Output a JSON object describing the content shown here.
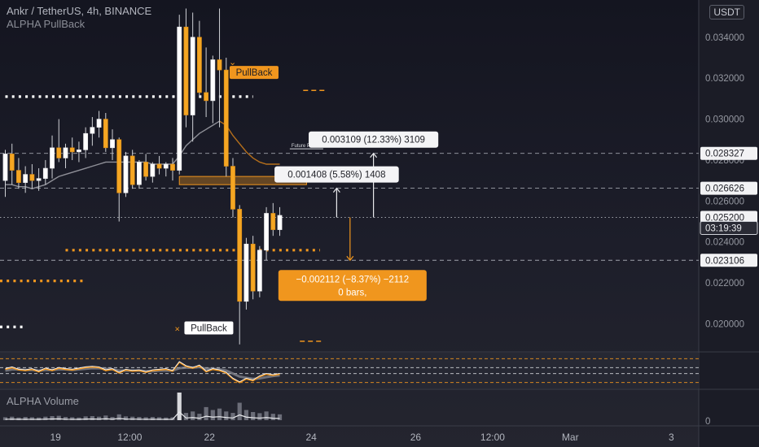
{
  "header": {
    "symbol": "Ankr / TetherUS, 4h, BINANCE",
    "indicator": "ALPHA PullBack",
    "currency": "USDT"
  },
  "volume_panel": {
    "title": "ALPHA Volume",
    "axis_label": "0"
  },
  "colors": {
    "up": "#ffffff",
    "down": "#f5a623",
    "accent": "#f0961e",
    "text": "#b2b5be",
    "dotted_line": "#ffffff",
    "ma_gray": "#8f9098"
  },
  "chart_data": {
    "type": "candlestick",
    "ylim": [
      0.01875,
      0.0355
    ],
    "price_ticks": [
      "0.034000",
      "0.032000",
      "0.030000",
      "0.028000",
      "0.026000",
      "0.024000",
      "0.022000",
      "0.020000"
    ],
    "price_labels": [
      {
        "value": 0.028327,
        "text": "0.028327",
        "style": "light"
      },
      {
        "value": 0.026626,
        "text": "0.026626",
        "style": "light"
      },
      {
        "value": 0.0252,
        "text": "0.025200",
        "style": "light"
      },
      {
        "value": 0.024685,
        "text": "03:19:39",
        "style": "dark"
      },
      {
        "value": 0.023106,
        "text": "0.023106",
        "style": "light"
      }
    ],
    "x_ticks": [
      "19",
      "12:00",
      "22",
      "24",
      "26",
      "12:00",
      "Mar",
      "3"
    ],
    "candles": [
      {
        "o": 0.027,
        "h": 0.0285,
        "l": 0.0262,
        "c": 0.0283
      },
      {
        "o": 0.0283,
        "h": 0.0288,
        "l": 0.0268,
        "c": 0.0275
      },
      {
        "o": 0.0275,
        "h": 0.0281,
        "l": 0.0266,
        "c": 0.0269
      },
      {
        "o": 0.0269,
        "h": 0.0277,
        "l": 0.0264,
        "c": 0.0273
      },
      {
        "o": 0.0273,
        "h": 0.0278,
        "l": 0.0266,
        "c": 0.027
      },
      {
        "o": 0.027,
        "h": 0.0276,
        "l": 0.0265,
        "c": 0.0271
      },
      {
        "o": 0.0271,
        "h": 0.028,
        "l": 0.0268,
        "c": 0.0276
      },
      {
        "o": 0.0276,
        "h": 0.0292,
        "l": 0.0271,
        "c": 0.0286
      },
      {
        "o": 0.0286,
        "h": 0.03,
        "l": 0.0279,
        "c": 0.0281
      },
      {
        "o": 0.0281,
        "h": 0.0288,
        "l": 0.0276,
        "c": 0.0286
      },
      {
        "o": 0.0286,
        "h": 0.0291,
        "l": 0.028,
        "c": 0.0284
      },
      {
        "o": 0.0284,
        "h": 0.0289,
        "l": 0.0279,
        "c": 0.0285
      },
      {
        "o": 0.0285,
        "h": 0.0296,
        "l": 0.0281,
        "c": 0.0293
      },
      {
        "o": 0.0293,
        "h": 0.0301,
        "l": 0.0287,
        "c": 0.0296
      },
      {
        "o": 0.0296,
        "h": 0.0304,
        "l": 0.0291,
        "c": 0.03
      },
      {
        "o": 0.03,
        "h": 0.0303,
        "l": 0.0284,
        "c": 0.0286
      },
      {
        "o": 0.0286,
        "h": 0.0295,
        "l": 0.028,
        "c": 0.029
      },
      {
        "o": 0.029,
        "h": 0.0291,
        "l": 0.025,
        "c": 0.0264
      },
      {
        "o": 0.0264,
        "h": 0.0284,
        "l": 0.0262,
        "c": 0.0282
      },
      {
        "o": 0.0282,
        "h": 0.0285,
        "l": 0.0266,
        "c": 0.0268
      },
      {
        "o": 0.0268,
        "h": 0.028,
        "l": 0.0266,
        "c": 0.0279
      },
      {
        "o": 0.0279,
        "h": 0.0283,
        "l": 0.027,
        "c": 0.0272
      },
      {
        "o": 0.0272,
        "h": 0.0279,
        "l": 0.0269,
        "c": 0.0278
      },
      {
        "o": 0.0278,
        "h": 0.0282,
        "l": 0.0273,
        "c": 0.0276
      },
      {
        "o": 0.0276,
        "h": 0.0279,
        "l": 0.0272,
        "c": 0.0278
      },
      {
        "o": 0.0278,
        "h": 0.0281,
        "l": 0.027,
        "c": 0.0275
      },
      {
        "o": 0.0275,
        "h": 0.0351,
        "l": 0.0273,
        "c": 0.0345
      },
      {
        "o": 0.0345,
        "h": 0.0354,
        "l": 0.0296,
        "c": 0.0302
      },
      {
        "o": 0.0302,
        "h": 0.0352,
        "l": 0.0289,
        "c": 0.034
      },
      {
        "o": 0.034,
        "h": 0.0348,
        "l": 0.0311,
        "c": 0.0313
      },
      {
        "o": 0.0313,
        "h": 0.0335,
        "l": 0.0301,
        "c": 0.0309
      },
      {
        "o": 0.0309,
        "h": 0.0331,
        "l": 0.0298,
        "c": 0.0329
      },
      {
        "o": 0.0329,
        "h": 0.0354,
        "l": 0.0296,
        "c": 0.0324
      },
      {
        "o": 0.0324,
        "h": 0.033,
        "l": 0.0272,
        "c": 0.0277
      },
      {
        "o": 0.0277,
        "h": 0.0281,
        "l": 0.0252,
        "c": 0.0256
      },
      {
        "o": 0.0256,
        "h": 0.0258,
        "l": 0.019,
        "c": 0.0211
      },
      {
        "o": 0.0211,
        "h": 0.0242,
        "l": 0.0207,
        "c": 0.0239
      },
      {
        "o": 0.0239,
        "h": 0.0243,
        "l": 0.0212,
        "c": 0.0216
      },
      {
        "o": 0.0216,
        "h": 0.0238,
        "l": 0.0213,
        "c": 0.0236
      },
      {
        "o": 0.0236,
        "h": 0.0257,
        "l": 0.0231,
        "c": 0.0254
      },
      {
        "o": 0.0254,
        "h": 0.0259,
        "l": 0.0243,
        "c": 0.0246
      },
      {
        "o": 0.0246,
        "h": 0.0257,
        "l": 0.0243,
        "c": 0.0253
      }
    ],
    "moving_average": [
      0.0268,
      0.0268,
      0.0267,
      0.0267,
      0.0266,
      0.0267,
      0.0268,
      0.027,
      0.0272,
      0.0273,
      0.0274,
      0.0275,
      0.0276,
      0.0277,
      0.0278,
      0.0279,
      0.0279,
      0.0279,
      0.0279,
      0.0279,
      0.0279,
      0.0279,
      0.0278,
      0.0278,
      0.0278,
      0.0278,
      0.0282,
      0.0287,
      0.029,
      0.0293,
      0.0295,
      0.0297,
      0.0299,
      0.0297,
      0.0292,
      0.0288,
      0.0284,
      0.0281,
      0.0279,
      0.0278,
      0.0278,
      0.0278
    ],
    "dotted_levels": [
      {
        "value": 0.0311,
        "from": 0,
        "to": 37,
        "color": "#ffffff"
      },
      {
        "value": 0.0236,
        "from": 9,
        "to": 47,
        "color": "#f0961e"
      },
      {
        "value": 0.0221,
        "from": -1,
        "to": 12,
        "color": "#f0961e"
      },
      {
        "value": 0.01985,
        "from": -1,
        "to": 3,
        "color": "#ffffff"
      }
    ],
    "dashed_segments": [
      {
        "value": 0.0314,
        "from": 44.5,
        "to": 48,
        "color": "#f0961e"
      },
      {
        "value": 0.01915,
        "from": 44,
        "to": 47.5,
        "color": "#f0961e"
      }
    ],
    "horizontal_lines": [
      {
        "value": 0.028327,
        "style": "dashed"
      },
      {
        "value": 0.026626,
        "style": "dashed"
      },
      {
        "value": 0.0252,
        "style": "dotted"
      },
      {
        "value": 0.023106,
        "style": "dashed"
      }
    ],
    "zone": {
      "value_top": 0.0272,
      "value_bottom": 0.0268,
      "from": 26,
      "to": 45
    },
    "signals": [
      {
        "text": "PullBack",
        "index": 34,
        "value": 0.0322,
        "type": "orange-up"
      },
      {
        "text": "PullBack",
        "index": 27,
        "value": 0.0198,
        "type": "white"
      }
    ],
    "future_pivot": {
      "text": "Future Pivot",
      "from": 42.5,
      "to": 47.5,
      "value": 0.02855
    },
    "measurements": [
      {
        "text": "0.003109 (12.33%) 3109",
        "from": 0.0252,
        "to": 0.028327,
        "x": 55,
        "style": "light"
      },
      {
        "text": "0.001408 (5.58%) 1408",
        "from": 0.0252,
        "to": 0.026626,
        "x": 49.5,
        "style": "light"
      },
      {
        "text": "−0.002112 (−8.37%) −2112",
        "subtext": "0 bars,",
        "from": 0.0252,
        "to": 0.023106,
        "x": 51.5,
        "style": "orange"
      }
    ],
    "oscillator": {
      "levels": [
        70,
        55,
        45,
        30
      ],
      "values": [
        52,
        55,
        51,
        50,
        52,
        48,
        53,
        50,
        54,
        52,
        51,
        53,
        55,
        56,
        55,
        50,
        52,
        46,
        51,
        49,
        50,
        47,
        50,
        51,
        52,
        49,
        64,
        57,
        54,
        58,
        48,
        52,
        50,
        46,
        36,
        30,
        36,
        33,
        40,
        44,
        42,
        44
      ],
      "signal": [
        50,
        52,
        52,
        51,
        51,
        50,
        51,
        51,
        52,
        52,
        51,
        52,
        53,
        54,
        54,
        53,
        52,
        50,
        50,
        50,
        50,
        49,
        49,
        50,
        50,
        50,
        54,
        55,
        55,
        56,
        53,
        53,
        52,
        50,
        45,
        40,
        38,
        36,
        37,
        39,
        41,
        42
      ]
    },
    "volume": [
      10,
      12,
      9,
      11,
      10,
      9,
      12,
      14,
      15,
      11,
      10,
      9,
      13,
      14,
      12,
      16,
      11,
      20,
      13,
      12,
      11,
      10,
      11,
      10,
      9,
      10,
      95,
      25,
      30,
      22,
      45,
      35,
      40,
      30,
      25,
      60,
      35,
      28,
      24,
      30,
      22,
      20
    ]
  }
}
